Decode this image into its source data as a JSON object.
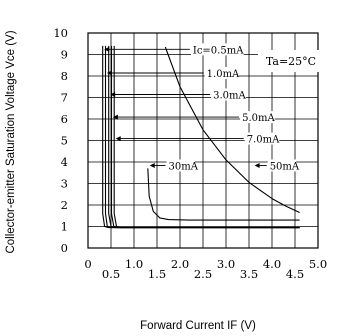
{
  "chart_data": {
    "type": "line",
    "title": "",
    "xlabel": "Forward Current IF (V)",
    "ylabel": "Collector-emitter Saturation Voltage Vce (V)",
    "xlim": [
      0,
      5.0
    ],
    "ylim": [
      0,
      10
    ],
    "grid": true,
    "x_ticks": [
      {
        "value": 0,
        "label": "0"
      },
      {
        "value": 0.5,
        "label": "0.5"
      },
      {
        "value": 1.0,
        "label": "1.0"
      },
      {
        "value": 1.5,
        "label": "1.5"
      },
      {
        "value": 2.0,
        "label": "2.0"
      },
      {
        "value": 2.5,
        "label": "2.5"
      },
      {
        "value": 3.0,
        "label": "3.0"
      },
      {
        "value": 3.5,
        "label": "3.5"
      },
      {
        "value": 4.0,
        "label": "4.0"
      },
      {
        "value": 4.5,
        "label": "4.5"
      },
      {
        "value": 5.0,
        "label": "5.0"
      }
    ],
    "y_ticks": [
      {
        "value": 0,
        "label": "0"
      },
      {
        "value": 1,
        "label": "1"
      },
      {
        "value": 2,
        "label": "2"
      },
      {
        "value": 3,
        "label": "3"
      },
      {
        "value": 4,
        "label": "4"
      },
      {
        "value": 5,
        "label": "5"
      },
      {
        "value": 6,
        "label": "6"
      },
      {
        "value": 7,
        "label": "7"
      },
      {
        "value": 8,
        "label": "8"
      },
      {
        "value": 9,
        "label": "9"
      },
      {
        "value": 10,
        "label": "10"
      }
    ],
    "condition": "Ta=25°C",
    "series": [
      {
        "name": "Ic=0.5mA",
        "values": [
          [
            0.32,
            9.4
          ],
          [
            0.32,
            1.6
          ],
          [
            0.36,
            1.0
          ],
          [
            0.45,
            0.95
          ],
          [
            4.6,
            0.95
          ]
        ]
      },
      {
        "name": "1.0mA",
        "values": [
          [
            0.38,
            9.4
          ],
          [
            0.38,
            1.6
          ],
          [
            0.42,
            1.0
          ],
          [
            0.5,
            0.95
          ],
          [
            4.6,
            0.95
          ]
        ]
      },
      {
        "name": "3.0mA",
        "values": [
          [
            0.45,
            9.4
          ],
          [
            0.45,
            1.6
          ],
          [
            0.5,
            1.0
          ],
          [
            0.58,
            0.95
          ],
          [
            4.6,
            0.95
          ]
        ]
      },
      {
        "name": "5.0mA",
        "values": [
          [
            0.51,
            9.4
          ],
          [
            0.51,
            1.6
          ],
          [
            0.56,
            1.0
          ],
          [
            0.64,
            0.95
          ],
          [
            4.6,
            0.95
          ]
        ]
      },
      {
        "name": "7.0mA",
        "values": [
          [
            0.57,
            9.4
          ],
          [
            0.57,
            1.6
          ],
          [
            0.62,
            1.0
          ],
          [
            0.7,
            0.95
          ],
          [
            4.6,
            0.95
          ]
        ]
      },
      {
        "name": "30mA",
        "values": [
          [
            1.3,
            3.7
          ],
          [
            1.33,
            2.4
          ],
          [
            1.42,
            1.7
          ],
          [
            1.56,
            1.4
          ],
          [
            1.75,
            1.32
          ],
          [
            2.2,
            1.3
          ],
          [
            4.6,
            1.3
          ]
        ]
      },
      {
        "name": "50mA",
        "values": [
          [
            1.68,
            9.35
          ],
          [
            2.0,
            7.5
          ],
          [
            2.5,
            5.5
          ],
          [
            3.0,
            4.1
          ],
          [
            3.5,
            3.05
          ],
          [
            4.0,
            2.3
          ],
          [
            4.3,
            1.95
          ],
          [
            4.6,
            1.65
          ]
        ]
      }
    ],
    "annotations": [
      {
        "text": "Ic=0.5mA",
        "x": 2.28,
        "y": 9.1,
        "points_to": "Ic=0.5mA",
        "arrow_to_x": 0.33
      },
      {
        "text": "1.0mA",
        "x": 2.58,
        "y": 8.0,
        "points_to": "1.0mA",
        "arrow_to_x": 0.39
      },
      {
        "text": "3.0mA",
        "x": 2.72,
        "y": 7.0,
        "points_to": "3.0mA",
        "arrow_to_x": 0.46
      },
      {
        "text": "5.0mA",
        "x": 3.35,
        "y": 5.95,
        "points_to": "5.0mA",
        "arrow_to_x": 0.52
      },
      {
        "text": "7.0mA",
        "x": 3.45,
        "y": 4.95,
        "points_to": "7.0mA",
        "arrow_to_x": 0.58
      },
      {
        "text": "30mA",
        "x": 1.75,
        "y": 3.7,
        "points_to": "30mA",
        "arrow_to_x": 1.32
      },
      {
        "text": "50mA",
        "x": 3.95,
        "y": 3.7,
        "points_to": "50mA",
        "arrow_to_x": 3.6
      }
    ]
  }
}
